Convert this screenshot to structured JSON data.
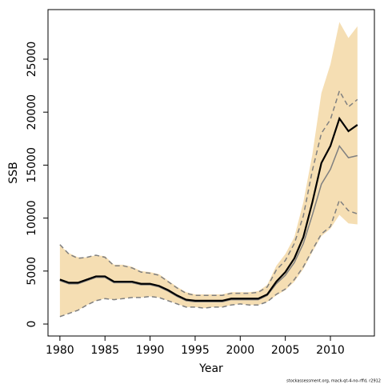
{
  "chart_data": {
    "type": "line",
    "x_label": "Year",
    "y_label": "SSB",
    "footnote": "stockassessment.org, mack-qt-4-no-rffd, r2912",
    "x": [
      1980,
      1981,
      1982,
      1983,
      1984,
      1985,
      1986,
      1987,
      1988,
      1989,
      1990,
      1991,
      1992,
      1993,
      1994,
      1995,
      1996,
      1997,
      1998,
      1999,
      2000,
      2001,
      2002,
      2003,
      2004,
      2005,
      2006,
      2007,
      2008,
      2009,
      2010,
      2011,
      2012,
      2013
    ],
    "band": {
      "color": "#f5deb3",
      "upper": [
        7400,
        6700,
        6300,
        6300,
        6500,
        6400,
        5600,
        5600,
        5400,
        5000,
        4900,
        4700,
        4100,
        3500,
        3000,
        2800,
        2800,
        2800,
        2800,
        3000,
        3000,
        3000,
        3100,
        3700,
        5500,
        6600,
        8200,
        11500,
        16000,
        21800,
        24500,
        28500,
        27000,
        28100
      ],
      "lower": [
        700,
        1000,
        1300,
        1800,
        2200,
        2400,
        2300,
        2400,
        2500,
        2500,
        2600,
        2500,
        2200,
        1900,
        1600,
        1600,
        1500,
        1600,
        1600,
        1800,
        1900,
        1800,
        1800,
        2100,
        2700,
        3200,
        4000,
        5200,
        6800,
        8300,
        9000,
        10300,
        9500,
        9400
      ]
    },
    "series": [
      {
        "color": "#808080",
        "dash": true,
        "values": [
          7500,
          6600,
          6200,
          6300,
          6500,
          6300,
          5500,
          5500,
          5300,
          4900,
          4800,
          4600,
          4000,
          3400,
          2900,
          2700,
          2700,
          2700,
          2700,
          2900,
          2900,
          2900,
          3000,
          3500,
          5100,
          6000,
          7600,
          10200,
          14500,
          18000,
          19300,
          22000,
          20500,
          21200
        ]
      },
      {
        "color": "#808080",
        "dash": true,
        "values": [
          700,
          1000,
          1300,
          1800,
          2200,
          2400,
          2300,
          2400,
          2500,
          2500,
          2600,
          2500,
          2200,
          1900,
          1600,
          1600,
          1500,
          1600,
          1600,
          1800,
          1900,
          1800,
          1800,
          2100,
          2800,
          3300,
          4200,
          5400,
          7000,
          8500,
          9200,
          11700,
          10700,
          10400
        ]
      },
      {
        "color": "#808080",
        "dash": false,
        "values": [
          4100,
          3800,
          3800,
          4100,
          4400,
          4400,
          3900,
          3900,
          3900,
          3700,
          3700,
          3500,
          3100,
          2600,
          2200,
          2100,
          2100,
          2100,
          2100,
          2300,
          2300,
          2300,
          2300,
          2700,
          3800,
          4600,
          5800,
          7600,
          10300,
          13200,
          14600,
          16800,
          15700,
          15900
        ]
      },
      {
        "color": "#000000",
        "dash": false,
        "values": [
          4200,
          3900,
          3900,
          4200,
          4500,
          4500,
          4000,
          4000,
          4000,
          3800,
          3800,
          3600,
          3200,
          2700,
          2300,
          2200,
          2200,
          2200,
          2200,
          2400,
          2400,
          2400,
          2400,
          2800,
          4000,
          4900,
          6200,
          8200,
          11500,
          15200,
          16800,
          19400,
          18200,
          18800
        ]
      }
    ],
    "xlim": [
      1978.68,
      2014.88
    ],
    "xticks": [
      1980,
      1985,
      1990,
      1995,
      2000,
      2005,
      2010
    ],
    "ylim": [
      -1130,
      29680
    ],
    "yticks": [
      0,
      5000,
      10000,
      15000,
      20000,
      25000
    ]
  }
}
